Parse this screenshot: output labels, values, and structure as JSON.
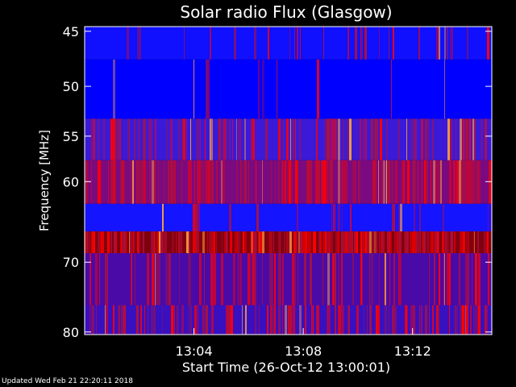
{
  "chart_data": {
    "type": "heatmap",
    "title": "Solar radio Flux (Glasgow)",
    "xlabel": "Start Time (26-Oct-12 13:00:01)",
    "ylabel": "Frequency [MHz]",
    "x_range_minutes": [
      0,
      14.9
    ],
    "x_ticks": [
      {
        "minute": 4,
        "label": "13:04"
      },
      {
        "minute": 8,
        "label": "13:08"
      },
      {
        "minute": 12,
        "label": "13:12"
      }
    ],
    "y_range_mhz": [
      44.6,
      80.4
    ],
    "y_ticks": [
      {
        "mhz": 45,
        "label": "45"
      },
      {
        "mhz": 50,
        "label": "50"
      },
      {
        "mhz": 55,
        "label": "55"
      },
      {
        "mhz": 60,
        "label": "60"
      },
      {
        "mhz": 70,
        "label": "70"
      },
      {
        "mhz": 80,
        "label": "80"
      }
    ],
    "bands": [
      {
        "mhz_start": 44.6,
        "mhz_end": 47.5,
        "base_color": "#1010ff",
        "red_density": 0.12
      },
      {
        "mhz_start": 47.5,
        "mhz_end": 53.2,
        "base_color": "#0000ff",
        "red_density": 0.04
      },
      {
        "mhz_start": 53.2,
        "mhz_end": 57.6,
        "base_color": "#3a1ad8",
        "red_density": 0.35
      },
      {
        "mhz_start": 57.6,
        "mhz_end": 62.6,
        "base_color": "#7a0a80",
        "red_density": 0.6
      },
      {
        "mhz_start": 62.6,
        "mhz_end": 66.0,
        "base_color": "#1414ff",
        "red_density": 0.08
      },
      {
        "mhz_start": 66.0,
        "mhz_end": 68.8,
        "base_color": "#800010",
        "red_density": 0.7
      },
      {
        "mhz_start": 68.8,
        "mhz_end": 76.0,
        "base_color": "#4a0aa8",
        "red_density": 0.3
      },
      {
        "mhz_start": 76.0,
        "mhz_end": 80.4,
        "base_color": "#3810c0",
        "red_density": 0.4
      }
    ],
    "colors": {
      "low": "#0000ff",
      "high": "#ff0000",
      "hot": "#ffa040"
    }
  },
  "footer": {
    "updated": "Updated Wed Feb 21 22:20:11 2018"
  }
}
